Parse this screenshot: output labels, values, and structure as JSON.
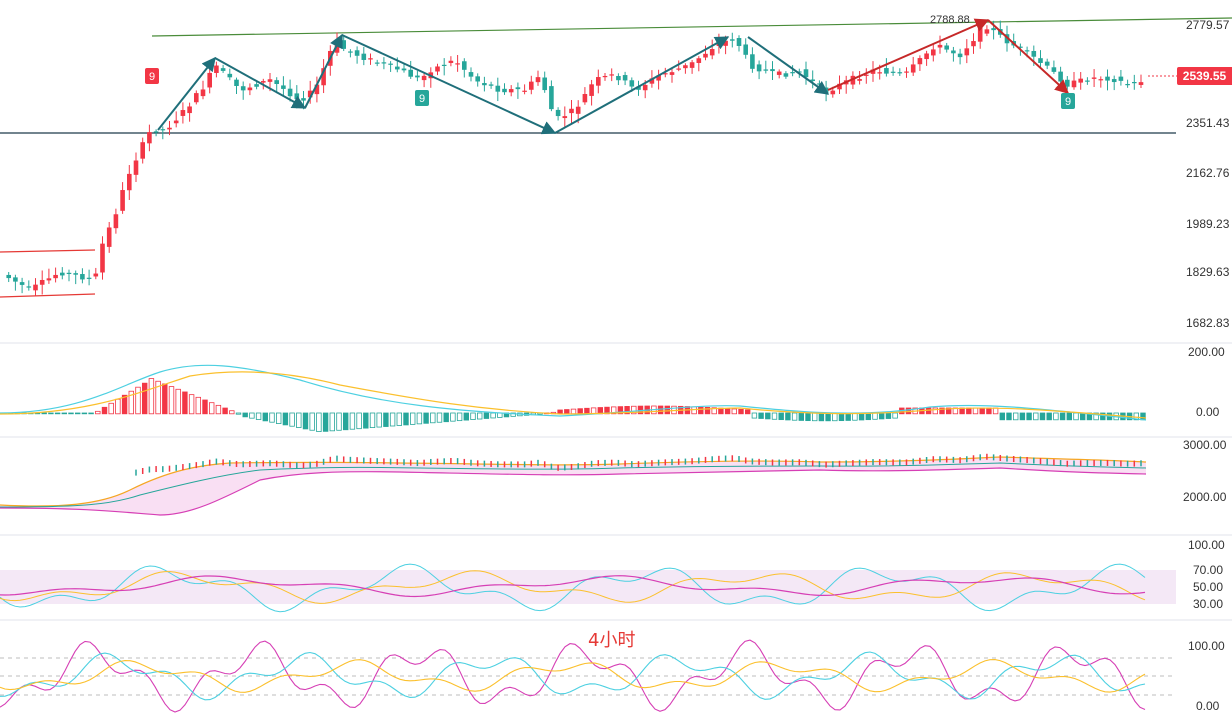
{
  "chart_data": {
    "type": "candlestick",
    "timeframe_label": "4小时",
    "current_price": "2539.55",
    "high_annotation": "2788.88",
    "td_markers": [
      "9",
      "9",
      "9"
    ],
    "main_axis_ticks": [
      "2779.57",
      "2351.43",
      "2162.76",
      "1989.23",
      "1829.63",
      "1682.83"
    ],
    "macd_axis_ticks": [
      "200.00",
      "0.00"
    ],
    "band_axis_ticks": [
      "3000.00",
      "2000.00"
    ],
    "rsi_axis_ticks": [
      "100.00",
      "70.00",
      "50.00",
      "30.00"
    ],
    "kdj_axis_ticks": [
      "100.00",
      "0.00"
    ],
    "colors": {
      "up": "#f23645",
      "down": "#26a69a",
      "trend": "#1f6f7a",
      "resistance": "#4a8c3a",
      "support": "#1f3b4a",
      "red_trend": "#c62828"
    }
  }
}
